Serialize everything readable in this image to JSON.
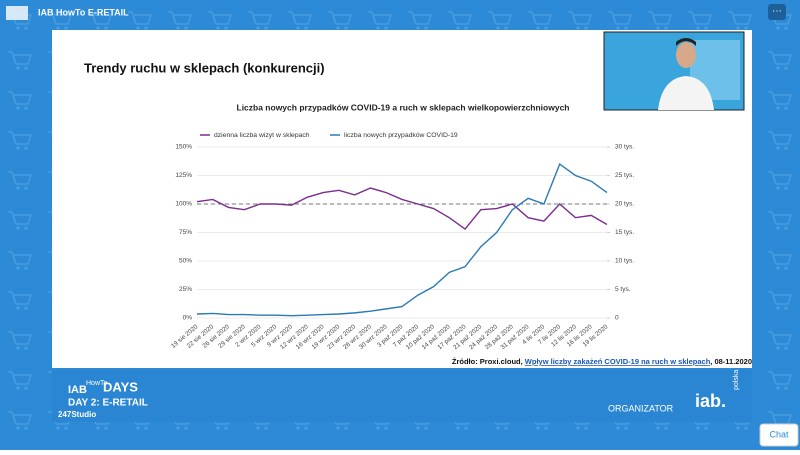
{
  "header": {
    "title": "IAB HowTo E-RETAIL"
  },
  "slide": {
    "title": "Trendy ruchu w sklepach (konkurencji)",
    "source": {
      "prefix": "Źródło: Proxi.cloud, ",
      "link": "Wpływ liczby zakażeń COVID-19 na ruch w sklepach",
      "suffix": ", 08-11.2020"
    }
  },
  "chart_data": {
    "type": "line",
    "title": "Liczba nowych przypadków COVID-19 a ruch w sklepach wielkopowierzchniowych",
    "categories": [
      "19 sie 2020",
      "22 sie 2020",
      "26 sie 2020",
      "29 sie 2020",
      "2 wrz 2020",
      "5 wrz 2020",
      "9 wrz 2020",
      "12 wrz 2020",
      "16 wrz 2020",
      "19 wrz 2020",
      "23 wrz 2020",
      "26 wrz 2020",
      "30 wrz 2020",
      "3 paź 2020",
      "7 paź 2020",
      "10 paź 2020",
      "14 paź 2020",
      "17 paź 2020",
      "21 paź 2020",
      "24 paź 2020",
      "28 paź 2020",
      "31 paź 2020",
      "4 lis 2020",
      "7 lis 2020",
      "12 lis 2020",
      "16 lis 2020",
      "19 lis 2020"
    ],
    "series": [
      {
        "name": "dzienna liczba wizyt w sklepach",
        "color": "#7b2d8e",
        "values": [
          102,
          104,
          97,
          95,
          100,
          100,
          99,
          106,
          110,
          112,
          108,
          114,
          110,
          104,
          100,
          96,
          88,
          78,
          95,
          96,
          100,
          88,
          85,
          100,
          88,
          90,
          82
        ]
      },
      {
        "name": "liczba nowych przypadków COVID-19",
        "color": "#2a7ab5",
        "axis": "y2",
        "values": [
          700,
          800,
          600,
          600,
          500,
          500,
          400,
          500,
          600,
          700,
          900,
          1200,
          1600,
          2000,
          4000,
          5500,
          8000,
          9000,
          12500,
          15000,
          19000,
          21000,
          20000,
          27000,
          25000,
          24000,
          22000
        ]
      }
    ],
    "ylim": [
      0,
      150
    ],
    "yticks": [
      {
        "value": 0,
        "label": "0%"
      },
      {
        "value": 25,
        "label": "25%"
      },
      {
        "value": 50,
        "label": "50%"
      },
      {
        "value": 75,
        "label": "75%"
      },
      {
        "value": 100,
        "label": "100%"
      },
      {
        "value": 125,
        "label": "125%"
      },
      {
        "value": 150,
        "label": "150%"
      }
    ],
    "y2lim": [
      0,
      30000
    ],
    "y2ticks": [
      0,
      {
        "value": 5000,
        "label": "5 tys."
      },
      {
        "value": 10000,
        "label": "10 tys."
      },
      {
        "value": 15000,
        "label": "15 tys."
      },
      {
        "value": 20000,
        "label": "20 tys."
      },
      {
        "value": 25000,
        "label": "25 tys."
      },
      {
        "value": 30000,
        "label": "30 tys."
      }
    ],
    "reference_line": 100
  },
  "footer": {
    "event": "IAB",
    "howto": "HowTo",
    "days": "DAYS",
    "day": "DAY 2: E-RETAIL",
    "studio": "247Studio",
    "organizer_label": "ORGANIZATOR",
    "organizer": "iab.",
    "organizer_sub": "polska"
  },
  "chat": "Chat"
}
